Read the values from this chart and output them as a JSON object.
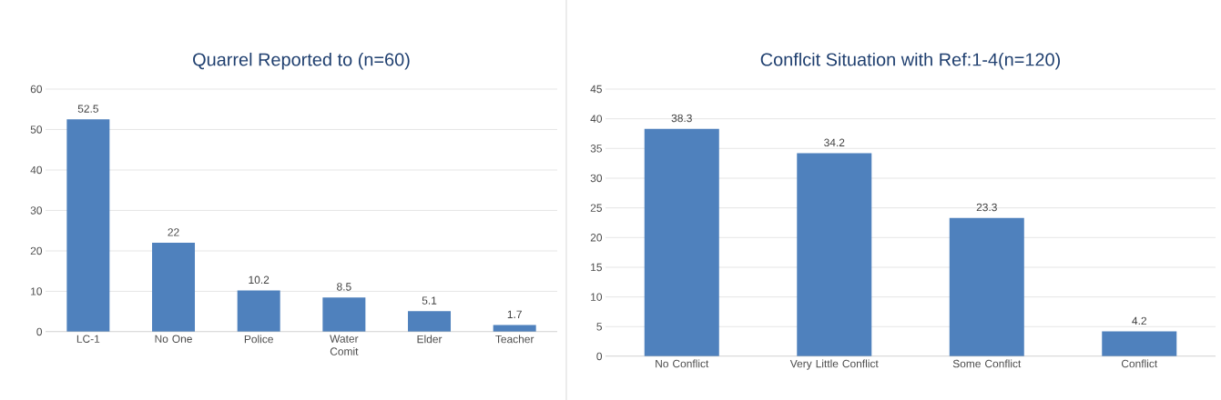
{
  "chart_data": [
    {
      "type": "bar",
      "title": "Quarrel Reported to (n=60)",
      "categories": [
        "LC-1",
        "No One",
        "Police",
        "Water Comit",
        "Elder",
        "Teacher"
      ],
      "values": [
        52.5,
        22,
        10.2,
        8.5,
        5.1,
        1.7
      ],
      "color": "#4f81bd",
      "ylim": [
        0,
        60
      ],
      "yticks": [
        0,
        10,
        20,
        30,
        40,
        50,
        60
      ],
      "grid": "y",
      "data_labels": true
    },
    {
      "type": "bar",
      "title": "Conflcit Situation with Ref:1-4(n=120)",
      "categories": [
        "No Conflict",
        "Very Little Conflict",
        "Some Conflict",
        "Conflict"
      ],
      "values": [
        38.3,
        34.2,
        23.3,
        4.2
      ],
      "color": "#4f81bd",
      "ylim": [
        0,
        45
      ],
      "yticks": [
        0,
        5,
        10,
        15,
        20,
        25,
        30,
        35,
        40,
        45
      ],
      "grid": "y",
      "data_labels": true
    }
  ]
}
